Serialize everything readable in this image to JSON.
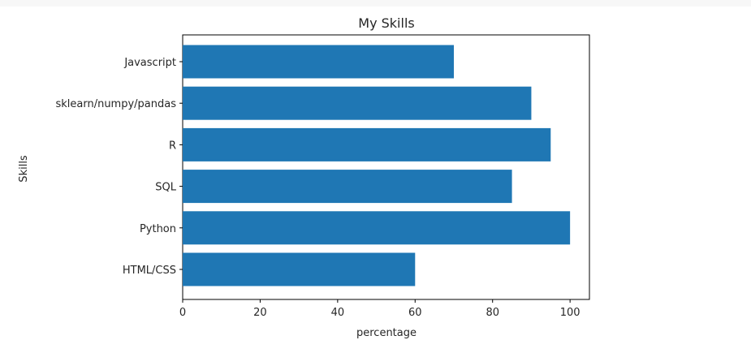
{
  "chart_data": {
    "type": "bar",
    "orientation": "horizontal",
    "title": "My Skills",
    "xlabel": "percentage",
    "ylabel": "Skills",
    "categories": [
      "HTML/CSS",
      "Python",
      "SQL",
      "R",
      "sklearn/numpy/pandas",
      "Javascript"
    ],
    "values": [
      60,
      100,
      85,
      95,
      90,
      70
    ],
    "xlim": [
      0,
      105
    ],
    "xticks": [
      0,
      20,
      40,
      60,
      80,
      100
    ],
    "grid": false,
    "bar_color": "#1f77b4"
  }
}
